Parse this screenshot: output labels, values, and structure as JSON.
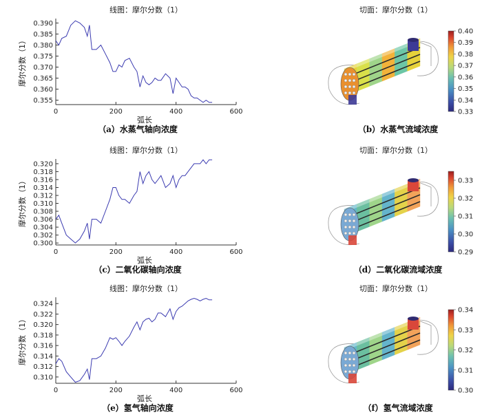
{
  "panels": [
    {
      "line": {
        "title": "线图：摩尔分数（1）",
        "ylabel": "摩尔分数（1）",
        "xlabel": "弧长",
        "xlim": [
          0,
          600
        ],
        "xticks": [
          0,
          200,
          400,
          600
        ],
        "ylim": [
          0.353,
          0.392
        ],
        "yticks": [
          0.355,
          0.36,
          0.365,
          0.37,
          0.375,
          0.38,
          0.385,
          0.39
        ],
        "color": "#3a3ab0",
        "caption": "（a）水蒸气轴向浓度"
      },
      "surface": {
        "title": "切面：摩尔分数（1）",
        "cbar_min": 0.33,
        "cbar_max": 0.4,
        "cbar_ticks": [
          "0.40",
          "0.39",
          "0.38",
          "0.37",
          "0.36",
          "0.35",
          "0.34",
          "0.33"
        ],
        "caption": "（b）水蒸气流域浓度",
        "body_colors": [
          "#e7d23a",
          "#d9e04a",
          "#9fd58a",
          "#f2b23a",
          "#6cc6a6",
          "#e7d23a"
        ],
        "end_color": "#e9902f",
        "inlet_color": "#3d3a96"
      }
    },
    {
      "line": {
        "title": "线图：摩尔分数（1）",
        "ylabel": "摩尔分数（1）",
        "xlabel": "弧长",
        "xlim": [
          0,
          600
        ],
        "xticks": [
          0,
          200,
          400,
          600
        ],
        "ylim": [
          0.2995,
          0.3212
        ],
        "yticks": [
          0.3,
          0.302,
          0.304,
          0.306,
          0.308,
          0.31,
          0.312,
          0.314,
          0.316,
          0.318,
          0.32
        ],
        "color": "#3a3ab0",
        "caption": "（c）二氧化碳轴向浓度"
      },
      "surface": {
        "title": "切面：摩尔分数（1）",
        "cbar_min": 0.29,
        "cbar_max": 0.335,
        "cbar_ticks": [
          "0.33",
          "0.32",
          "0.31",
          "0.30",
          "0.29"
        ],
        "caption": "（d）二氧化碳流域浓度",
        "body_colors": [
          "#63b6c9",
          "#6bbfa0",
          "#9fd58a",
          "#64b4cc",
          "#e4d24a",
          "#f2a35a"
        ],
        "end_color": "#7aa9d4",
        "inlet_color": "#d9473a"
      }
    },
    {
      "line": {
        "title": "线图：摩尔分数（1）",
        "ylabel": "摩尔分数（1）",
        "xlabel": "弧长",
        "xlim": [
          0,
          600
        ],
        "xticks": [
          0,
          200,
          400,
          600
        ],
        "ylim": [
          0.3088,
          0.3252
        ],
        "yticks": [
          0.31,
          0.312,
          0.314,
          0.316,
          0.318,
          0.32,
          0.322,
          0.324
        ],
        "color": "#3a3ab0",
        "caption": "（e）氢气轴向浓度"
      },
      "surface": {
        "title": "切面：摩尔分数（1）",
        "cbar_min": 0.3,
        "cbar_max": 0.34,
        "cbar_ticks": [
          "0.34",
          "0.33",
          "0.32",
          "0.31",
          "0.30"
        ],
        "caption": "（f）氢气流域浓度",
        "body_colors": [
          "#63b6c9",
          "#6bbfa0",
          "#9fd58a",
          "#64b4cc",
          "#e4d24a",
          "#f2a35a"
        ],
        "end_color": "#7aa9d4",
        "inlet_color": "#d9473a"
      }
    }
  ],
  "chart_data": [
    {
      "type": "line",
      "title": "线图：摩尔分数（1）",
      "xlabel": "弧长",
      "ylabel": "摩尔分数（1）",
      "xlim": [
        0,
        600
      ],
      "ylim": [
        0.353,
        0.392
      ],
      "x": [
        0,
        10,
        20,
        35,
        50,
        65,
        80,
        95,
        105,
        112,
        120,
        135,
        150,
        165,
        180,
        190,
        200,
        210,
        220,
        230,
        245,
        260,
        270,
        280,
        290,
        300,
        310,
        320,
        330,
        340,
        350,
        365,
        380,
        390,
        400,
        410,
        420,
        430,
        440,
        450,
        460,
        470,
        480,
        490,
        500,
        510,
        520
      ],
      "y": [
        0.382,
        0.38,
        0.383,
        0.384,
        0.389,
        0.391,
        0.39,
        0.388,
        0.384,
        0.389,
        0.378,
        0.378,
        0.38,
        0.376,
        0.372,
        0.368,
        0.368,
        0.371,
        0.37,
        0.373,
        0.374,
        0.37,
        0.368,
        0.361,
        0.366,
        0.363,
        0.362,
        0.363,
        0.365,
        0.364,
        0.364,
        0.367,
        0.365,
        0.358,
        0.365,
        0.363,
        0.361,
        0.361,
        0.36,
        0.357,
        0.356,
        0.356,
        0.355,
        0.354,
        0.355,
        0.354,
        0.354
      ]
    },
    {
      "type": "line",
      "title": "线图：摩尔分数（1）",
      "xlabel": "弧长",
      "ylabel": "摩尔分数（1）",
      "xlim": [
        0,
        600
      ],
      "ylim": [
        0.2995,
        0.3212
      ],
      "x": [
        0,
        10,
        20,
        35,
        50,
        65,
        80,
        95,
        105,
        112,
        120,
        135,
        150,
        165,
        180,
        190,
        200,
        210,
        220,
        230,
        245,
        260,
        270,
        280,
        290,
        300,
        310,
        320,
        330,
        340,
        350,
        365,
        380,
        390,
        400,
        410,
        420,
        430,
        440,
        450,
        460,
        470,
        480,
        490,
        500,
        510,
        520
      ],
      "y": [
        0.306,
        0.307,
        0.305,
        0.302,
        0.301,
        0.3,
        0.301,
        0.303,
        0.305,
        0.301,
        0.306,
        0.306,
        0.305,
        0.308,
        0.311,
        0.314,
        0.314,
        0.312,
        0.311,
        0.311,
        0.31,
        0.312,
        0.313,
        0.318,
        0.315,
        0.317,
        0.318,
        0.316,
        0.315,
        0.316,
        0.317,
        0.314,
        0.315,
        0.317,
        0.314,
        0.316,
        0.317,
        0.317,
        0.318,
        0.319,
        0.32,
        0.32,
        0.32,
        0.321,
        0.32,
        0.321,
        0.321
      ]
    },
    {
      "type": "line",
      "title": "线图：摩尔分数（1）",
      "xlabel": "弧长",
      "ylabel": "摩尔分数（1）",
      "xlim": [
        0,
        600
      ],
      "ylim": [
        0.3088,
        0.3252
      ],
      "x": [
        0,
        10,
        20,
        35,
        50,
        65,
        80,
        95,
        105,
        112,
        120,
        135,
        150,
        165,
        180,
        190,
        200,
        210,
        220,
        230,
        245,
        260,
        270,
        280,
        290,
        300,
        310,
        320,
        330,
        340,
        350,
        365,
        380,
        390,
        400,
        410,
        420,
        430,
        440,
        450,
        460,
        470,
        480,
        490,
        500,
        510,
        520
      ],
      "y": [
        0.3125,
        0.3135,
        0.313,
        0.311,
        0.31,
        0.309,
        0.3093,
        0.3105,
        0.3115,
        0.3095,
        0.3135,
        0.3135,
        0.314,
        0.3155,
        0.3175,
        0.3172,
        0.3175,
        0.3168,
        0.316,
        0.3168,
        0.3178,
        0.3195,
        0.3205,
        0.319,
        0.3205,
        0.321,
        0.3212,
        0.3205,
        0.321,
        0.3222,
        0.3222,
        0.3215,
        0.323,
        0.321,
        0.3225,
        0.3232,
        0.3235,
        0.324,
        0.3245,
        0.3248,
        0.325,
        0.3248,
        0.3245,
        0.3248,
        0.325,
        0.3247,
        0.3247
      ]
    }
  ]
}
